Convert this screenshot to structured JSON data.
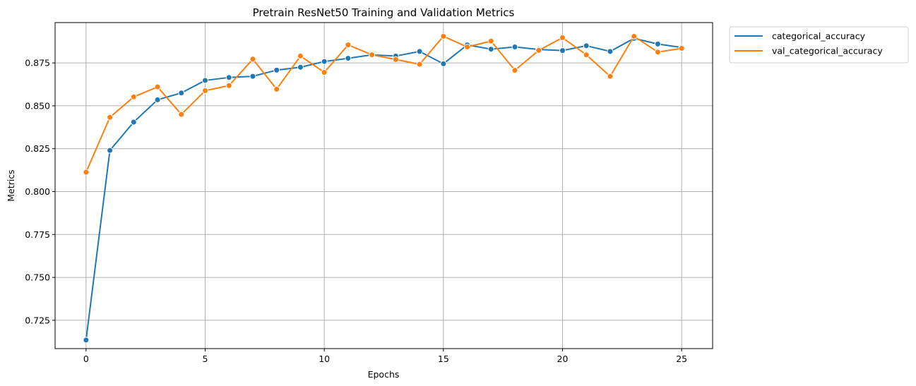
{
  "chart_data": {
    "type": "line",
    "title": "Pretrain ResNet50 Training and Validation Metrics",
    "xlabel": "Epochs",
    "ylabel": "Metrics",
    "xlim": [
      -1.3,
      26.3
    ],
    "ylim": [
      0.7085,
      0.8985
    ],
    "xticks": [
      0,
      5,
      10,
      15,
      20,
      25
    ],
    "yticks": [
      0.725,
      0.75,
      0.775,
      0.8,
      0.825,
      0.85,
      0.875
    ],
    "xtick_labels": [
      "0",
      "5",
      "10",
      "15",
      "20",
      "25"
    ],
    "ytick_labels": [
      "0.725",
      "0.750",
      "0.775",
      "0.800",
      "0.825",
      "0.850",
      "0.875"
    ],
    "grid": true,
    "legend_position": "outside-top-right",
    "x": [
      0,
      1,
      2,
      3,
      4,
      5,
      6,
      7,
      8,
      9,
      10,
      11,
      12,
      13,
      14,
      15,
      16,
      17,
      18,
      19,
      20,
      21,
      22,
      23,
      24,
      25
    ],
    "series": [
      {
        "name": "categorical_accuracy",
        "color": "#1f77b4",
        "values": [
          0.7135,
          0.824,
          0.8405,
          0.8535,
          0.8575,
          0.8648,
          0.8665,
          0.8672,
          0.8708,
          0.8725,
          0.8758,
          0.8777,
          0.8797,
          0.879,
          0.8817,
          0.8745,
          0.8855,
          0.883,
          0.8843,
          0.8828,
          0.8822,
          0.885,
          0.8817,
          0.8893,
          0.886,
          0.884
        ]
      },
      {
        "name": "val_categorical_accuracy",
        "color": "#ff7f0e",
        "values": [
          0.8113,
          0.8433,
          0.8552,
          0.861,
          0.845,
          0.8588,
          0.8618,
          0.8772,
          0.8597,
          0.879,
          0.8695,
          0.8855,
          0.8797,
          0.877,
          0.8742,
          0.8905,
          0.8843,
          0.8877,
          0.8707,
          0.8823,
          0.8897,
          0.8797,
          0.8672,
          0.8905,
          0.8813,
          0.8835
        ]
      }
    ]
  }
}
